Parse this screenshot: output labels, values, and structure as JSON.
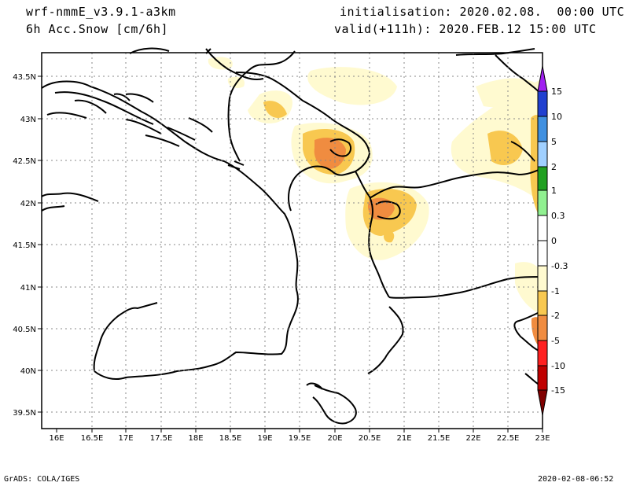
{
  "header": {
    "model": "wrf-nmmE_v3.9.1-a3km",
    "field": "6h Acc.Snow [cm/6h]",
    "init": "initialisation: 2020.02.08.  00:00 UTC",
    "valid": "valid(+111h): 2020.FEB.12 15:00 UTC"
  },
  "axes": {
    "lat_labels": [
      "43.5N",
      "43N",
      "42.5N",
      "42N",
      "41.5N",
      "41N",
      "40.5N",
      "40N",
      "39.5N"
    ],
    "lon_labels": [
      "16E",
      "16.5E",
      "17E",
      "17.5E",
      "18E",
      "18.5E",
      "19E",
      "19.5E",
      "20E",
      "20.5E",
      "21E",
      "21.5E",
      "22E",
      "22.5E",
      "23E"
    ]
  },
  "legend": {
    "labels": [
      "15",
      "10",
      "5",
      "2",
      "1",
      "0.3",
      "0",
      "-0.3",
      "-1",
      "-2",
      "-5",
      "-10",
      "-15"
    ],
    "colors": {
      "top_arrow": "#a020f0",
      "c15": "#2040d0",
      "c10": "#4090e0",
      "c5": "#a0d0ff",
      "c2": "#20a020",
      "c1": "#90f090",
      "zero_a": "#ffffff",
      "zero_b": "#ffffff",
      "n03": "#fffad0",
      "n1": "#f8c850",
      "n2": "#f08c40",
      "n5": "#ff2020",
      "n10": "#c00000",
      "bottom_arrow": "#800000"
    }
  },
  "footer": {
    "left": "GrADS: COLA/IGES",
    "right": "2020-02-08-06:52"
  }
}
